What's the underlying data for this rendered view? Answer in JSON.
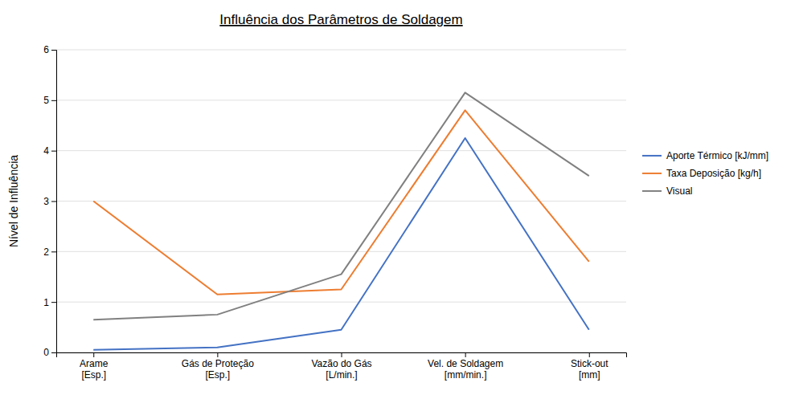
{
  "chart_data": {
    "type": "line",
    "title": "Influência dos Parâmetros de Soldagem",
    "ylabel": "Nível de Influência",
    "categories": [
      "Arame\n[Esp.]",
      "Gás de Proteção\n[Esp.]",
      "Vazão do Gás\n[L/min.]",
      "Vel. de Soldagem\n[mm/min.]",
      "Stick-out\n[mm]"
    ],
    "series": [
      {
        "name": "Aporte Térmico [kJ/mm]",
        "color": "#4472C4",
        "values": [
          0.05,
          0.1,
          0.45,
          4.25,
          0.45
        ]
      },
      {
        "name": "Taxa Deposição [kg/h]",
        "color": "#ED7D31",
        "values": [
          3.0,
          1.15,
          1.25,
          4.8,
          1.8
        ]
      },
      {
        "name": "Visual",
        "color": "#808080",
        "values": [
          0.65,
          0.75,
          1.55,
          5.15,
          3.5
        ]
      }
    ],
    "ylim": [
      0,
      6
    ],
    "yticks": [
      0,
      1,
      2,
      3,
      4,
      5,
      6
    ],
    "grid": true,
    "legend": "right"
  }
}
